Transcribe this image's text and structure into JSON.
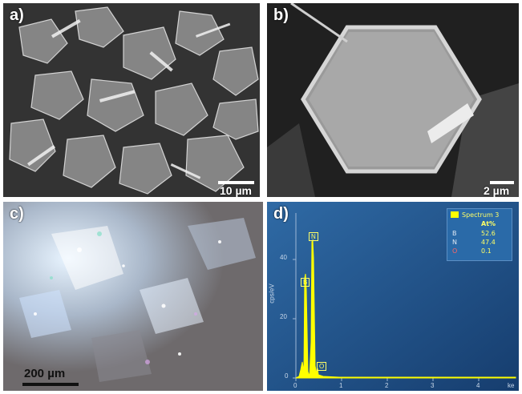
{
  "panel_a": {
    "label": "a)",
    "scale": "10 µm"
  },
  "panel_b": {
    "label": "b)",
    "scale": "2 µm"
  },
  "panel_c": {
    "label": "c)",
    "scale": "200 µm"
  },
  "panel_d": {
    "label": "d)",
    "legend_title": "Spectrum 3",
    "legend_header": "At%",
    "elements": [
      {
        "symbol": "B",
        "value": "52.6"
      },
      {
        "symbol": "N",
        "value": "47.4"
      },
      {
        "symbol": "O",
        "value": "0.1"
      }
    ],
    "peak_labels": [
      "N",
      "B",
      "O"
    ],
    "y_axis_label": "cps/eV",
    "y_ticks": [
      "40",
      "20",
      "0"
    ],
    "x_ticks": [
      "0",
      "1",
      "2",
      "3",
      "4"
    ],
    "x_unit": "ke",
    "colors": {
      "background": "#1f4e86",
      "spectrum": "#ffff00"
    }
  }
}
